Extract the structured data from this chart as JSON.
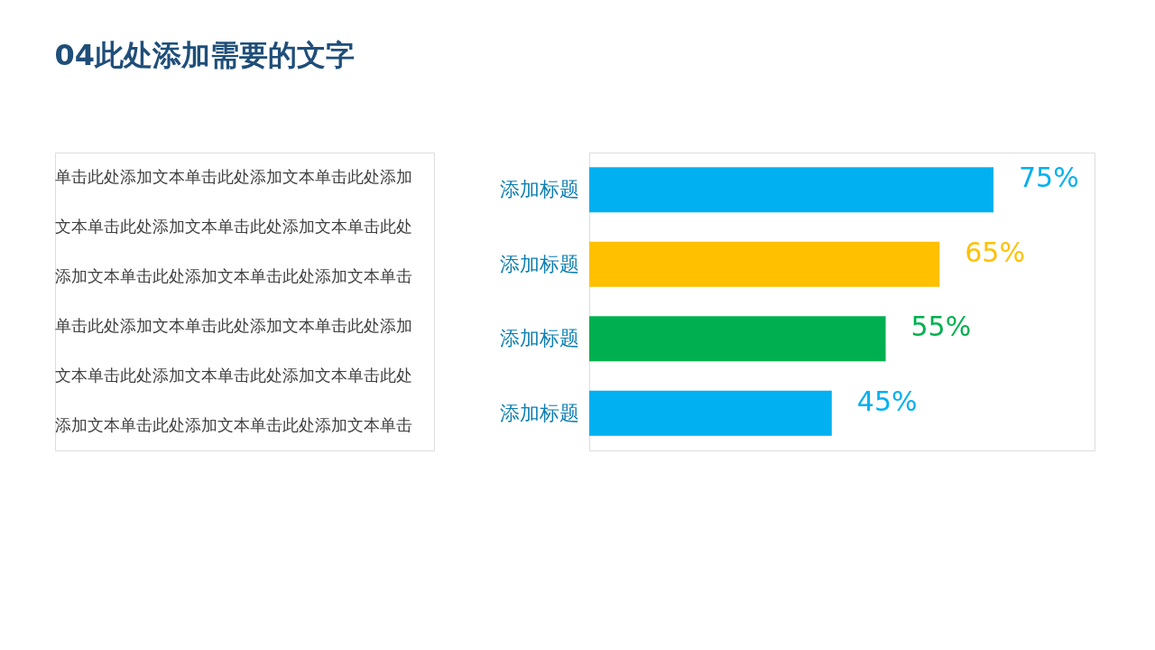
{
  "chart_data": {
    "type": "bar",
    "orientation": "horizontal",
    "title": "04此处添加需要的文字",
    "categories": [
      "添加标题",
      "添加标题",
      "添加标题",
      "添加标题"
    ],
    "values": [
      75,
      65,
      55,
      45
    ],
    "colors": [
      "#00b0f0",
      "#ffc000",
      "#00b050",
      "#00b0f0"
    ],
    "value_labels": [
      "75%",
      "65%",
      "55%",
      "45%"
    ],
    "annotations": [
      "单击此处添加文本单击此处添加文本单击此处添加文本单击此处添加文本单击此处添加文本单击此处添加文本单击此处添加文本单击此处添加文本单击",
      "单击此处添加文本单击此处添加文本单击此处添加文本单击此处添加文本单击此处添加文本单击此处添加文本单击此处添加文本单击此处添加文本单击"
    ]
  }
}
